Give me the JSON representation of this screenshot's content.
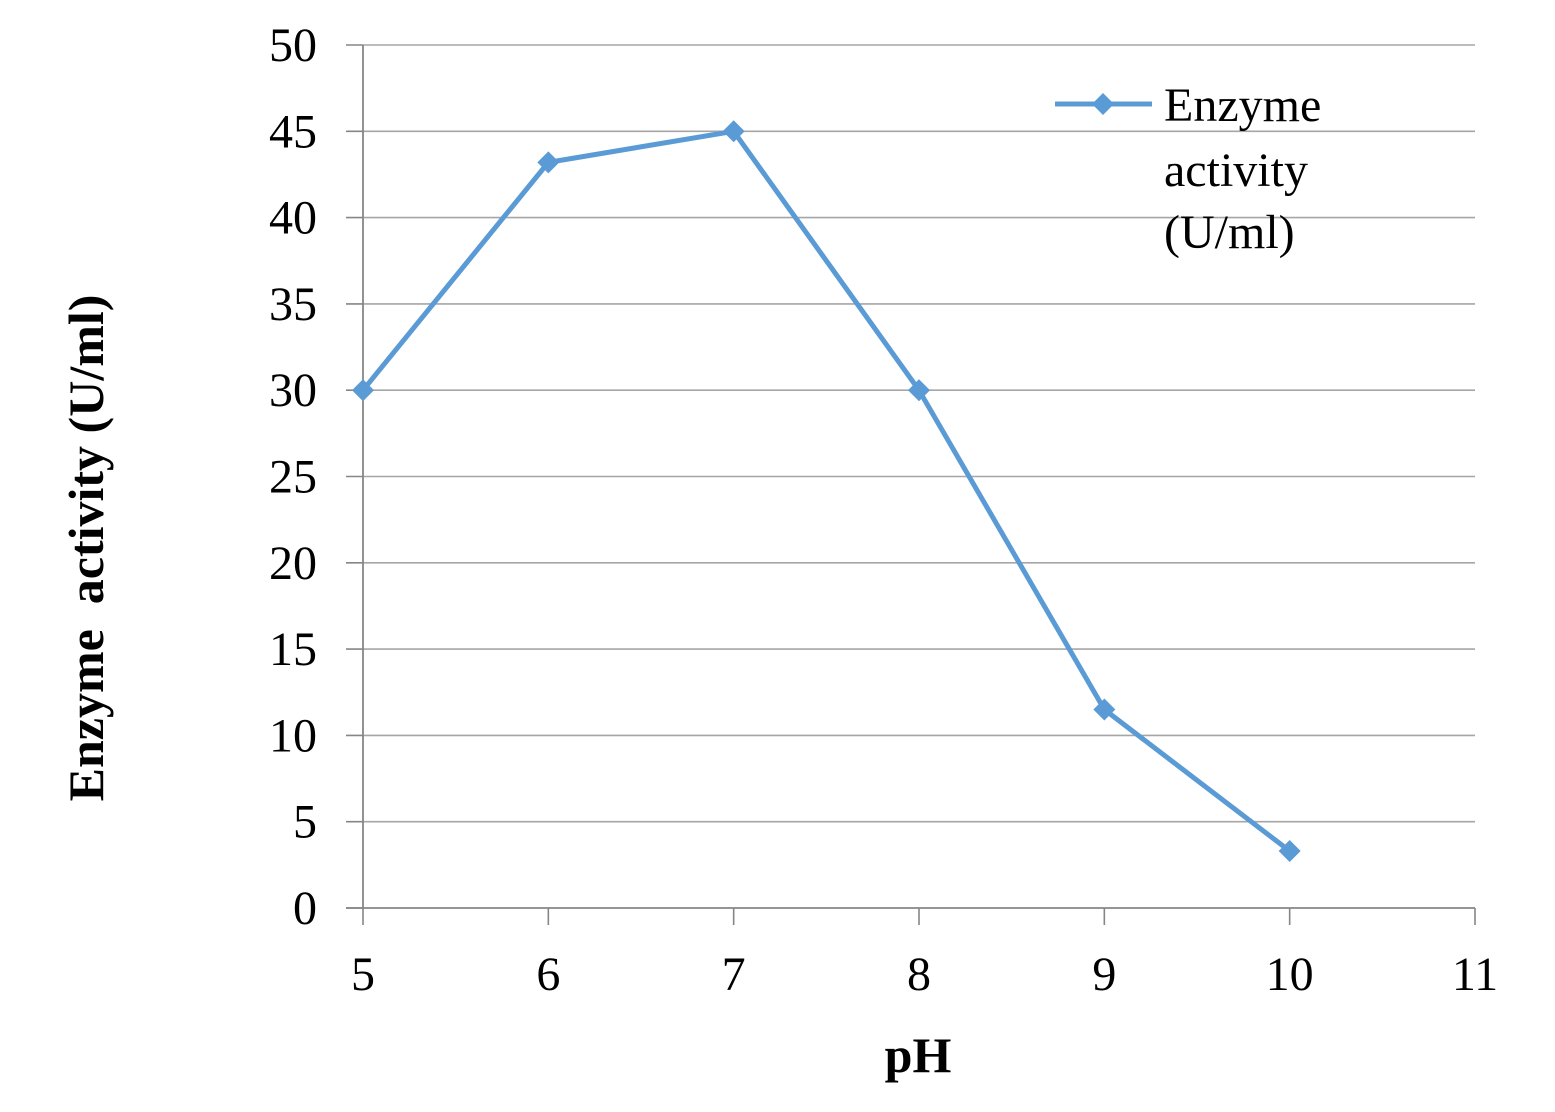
{
  "chart_data": {
    "type": "line",
    "title": "",
    "xlabel": "pH",
    "ylabel": "Enzyme  activity (U/ml)",
    "x": [
      5,
      6,
      7,
      8,
      9,
      10
    ],
    "series": [
      {
        "name": "Enzyme activity (U/ml)",
        "name_lines": [
          "Enzyme",
          "activity",
          "(U/ml)"
        ],
        "values": [
          30,
          43.2,
          45,
          30,
          11.5,
          3.3
        ],
        "color": "#5b9bd5",
        "marker": "diamond"
      }
    ],
    "xlim": [
      5,
      11
    ],
    "ylim": [
      0,
      50
    ],
    "x_ticks": [
      "5",
      "6",
      "7",
      "8",
      "9",
      "10",
      "11"
    ],
    "y_ticks": [
      "0",
      "5",
      "10",
      "15",
      "20",
      "25",
      "30",
      "35",
      "40",
      "45",
      "50"
    ],
    "grid": "horizontal",
    "legend_position": "top-right",
    "colors": {
      "grid": "#a6a6a6",
      "axis": "#868686",
      "text": "#000000"
    }
  }
}
